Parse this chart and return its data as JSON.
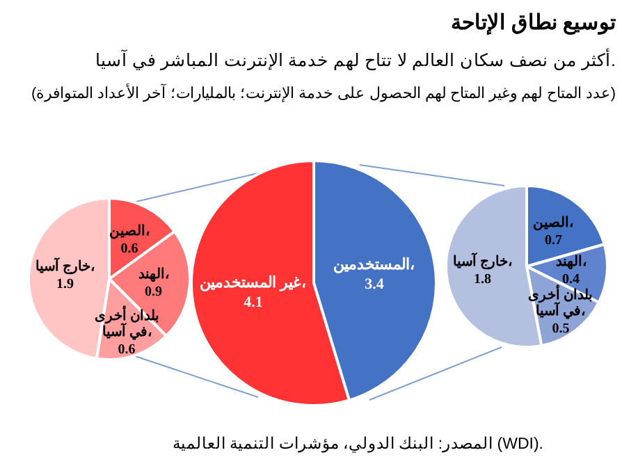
{
  "chart_data": [
    {
      "type": "pie",
      "title": "توسيع نطاق الإتاحة",
      "subtitle": "أكثر من نصف سكان العالم لا تتاح لهم خدمة الإنترنت المباشر في آسيا.",
      "annotations": [
        "(عدد المتاح لهم وغير المتاح لهم الحصول على خدمة الإنترنت؛ بالمليارات؛ آخر الأعداد المتوافرة)",
        "المصدر: البنك الدولي، مؤشرات التنمية العالمية (WDI)."
      ],
      "categories": [
        "الصين،",
        "الهند،",
        "بلدان أخرى في آسيا،",
        "خارج آسيا،"
      ],
      "values": [
        0.7,
        0.4,
        0.5,
        1.8
      ],
      "colors": [
        "#4472c4",
        "#5f83cc",
        "#8ea3d6",
        "#b4c0e0"
      ],
      "data_labels": true
    },
    {
      "type": "pie",
      "categories": [
        "المستخدمين،",
        "غير المستخدمين،"
      ],
      "values": [
        3.4,
        4.1
      ],
      "colors": [
        "#4472c4",
        "#ff3333"
      ],
      "data_labels": true
    },
    {
      "type": "pie",
      "categories": [
        "الصين،",
        "الهند،",
        "بلدان أخرى في آسيا،",
        "خارج آسيا،"
      ],
      "values": [
        0.6,
        0.9,
        0.6,
        1.9
      ],
      "colors": [
        "#ff5252",
        "#ff7a7a",
        "#ff9e9e",
        "#ffc4c4"
      ],
      "data_labels": true
    }
  ]
}
